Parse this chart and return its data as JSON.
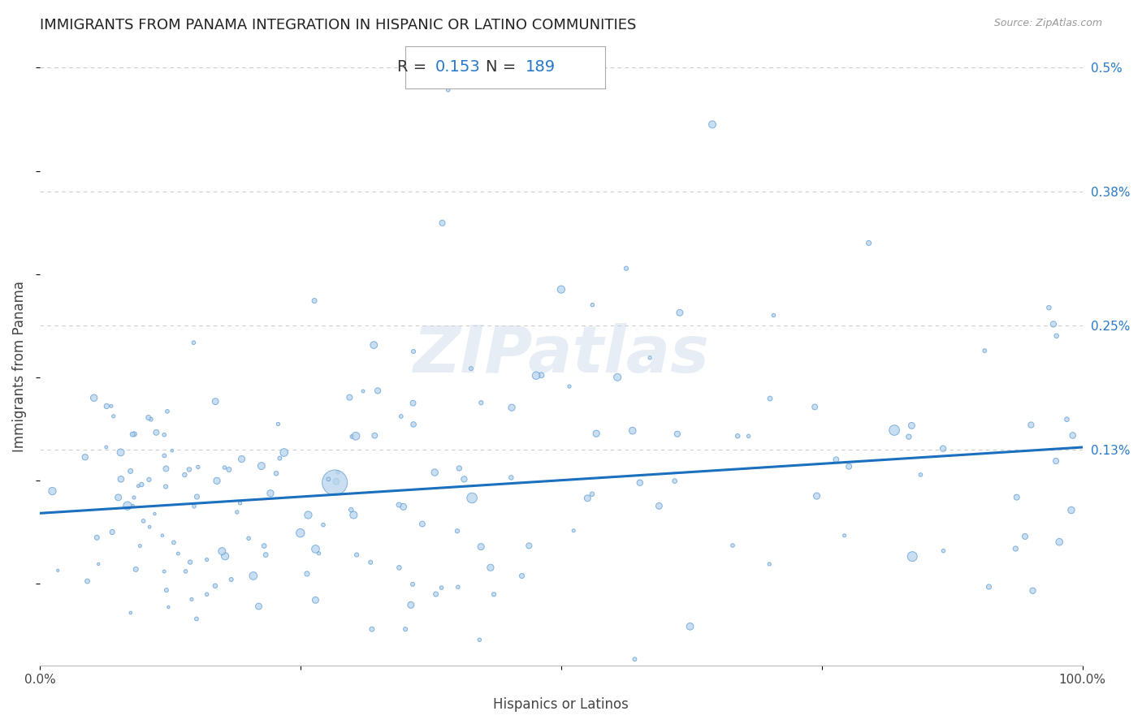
{
  "title": "IMMIGRANTS FROM PANAMA INTEGRATION IN HISPANIC OR LATINO COMMUNITIES",
  "source": "Source: ZipAtlas.com",
  "xlabel": "Hispanics or Latinos",
  "ylabel": "Immigrants from Panama",
  "R_value": "0.153",
  "N_value": "189",
  "scatter_color": "#b8d4ec",
  "scatter_edge_color": "#5b9bd5",
  "line_color": "#1a6fbe",
  "watermark": "ZIPatlas",
  "title_color": "#222222",
  "title_fontsize": 13,
  "annotation_color": "#2878c8",
  "grid_color": "#cccccc",
  "xlim": [
    0,
    1.0
  ],
  "ylim": [
    -0.0008,
    0.005
  ],
  "ytick_values": [
    0.005,
    0.0038,
    0.0025,
    0.0013
  ],
  "ytick_labels": [
    "0.5%",
    "0.38%",
    "0.25%",
    "0.13%"
  ],
  "line_x0": 0.0,
  "line_x1": 1.0,
  "line_y0": 0.00068,
  "line_y1": 0.00132
}
